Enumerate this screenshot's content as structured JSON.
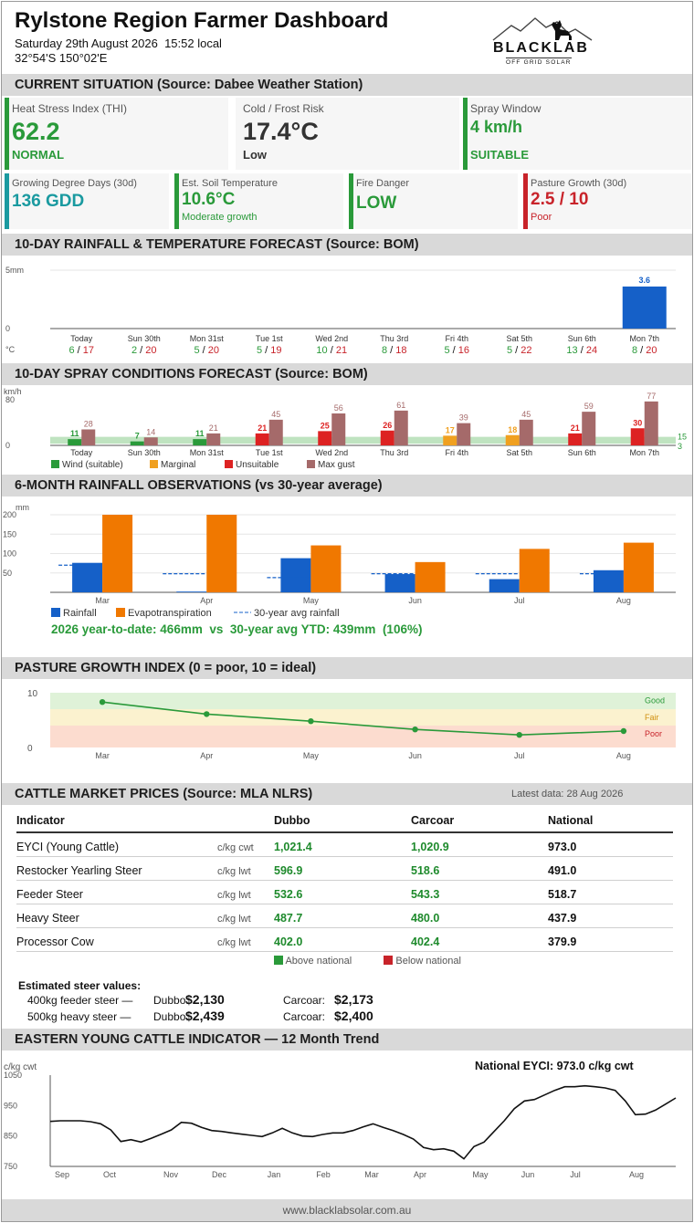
{
  "header": {
    "title": "Rylstone Region Farmer Dashboard",
    "datetime": "Saturday 29th August 2026  15:52 local",
    "coords": "32°54'S 150°02'E",
    "logo_text": "BLACKLAB",
    "logo_sub": "OFF GRID SOLAR"
  },
  "current": {
    "heading": "CURRENT SITUATION  (Source: Dabee Weather Station)",
    "cards_top": [
      {
        "label": "Heat Stress Index (THI)",
        "value": "62.2",
        "status": "NORMAL",
        "color": "#2a9a3a"
      },
      {
        "label": "Cold / Frost Risk",
        "value": "17.4°C",
        "status": "Low",
        "color": "#2a9a3a"
      },
      {
        "label": "Spray Window",
        "value": "4 km/h",
        "status": "SUITABLE",
        "color": "#2a9a3a"
      }
    ],
    "cards_bottom": [
      {
        "label": "Growing Degree Days (30d)",
        "value": "136 GDD",
        "status": "",
        "color": "#1a9aa0"
      },
      {
        "label": "Est. Soil Temperature",
        "value": "10.6°C",
        "status": "Moderate growth",
        "color": "#2a9a3a"
      },
      {
        "label": "Fire Danger",
        "value": "LOW",
        "status": "",
        "color": "#2a9a3a"
      },
      {
        "label": "Pasture Growth (30d)",
        "value": "2.5 / 10",
        "status": "Poor",
        "color": "#c8232a"
      }
    ]
  },
  "rain_forecast": {
    "heading": "10-DAY RAINFALL & TEMPERATURE FORECAST  (Source: BOM)",
    "y_top_label": "5mm",
    "y_zero_label": "0",
    "temp_unit": "°C",
    "days": [
      "Today",
      "Sun 30th",
      "Mon 31st",
      "Tue 1st",
      "Wed 2nd",
      "Thu 3rd",
      "Fri 4th",
      "Sat 5th",
      "Sun 6th",
      "Mon 7th"
    ],
    "rain_mm": [
      0,
      0,
      0,
      0,
      0,
      0,
      0,
      0,
      0,
      3.6
    ],
    "rain_labels": [
      "",
      "",
      "",
      "",
      "",
      "",
      "",
      "",
      "",
      "3.6"
    ],
    "tmin": [
      "6",
      "2",
      "5",
      "5",
      "10",
      "8",
      "5",
      "5",
      "13",
      "8"
    ],
    "tmax": [
      "17",
      "20",
      "20",
      "19",
      "21",
      "18",
      "16",
      "22",
      "24",
      "20"
    ],
    "sep": "/"
  },
  "spray_forecast": {
    "heading": "10-DAY SPRAY CONDITIONS FORECAST  (Source: BOM)",
    "y_unit": "km/h",
    "y_top_label": "80",
    "y_zero_label": "0",
    "band_high_label": "15",
    "band_low_label": "3",
    "days": [
      "Today",
      "Sun 30th",
      "Mon 31st",
      "Tue 1st",
      "Wed 2nd",
      "Thu 3rd",
      "Fri 4th",
      "Sat 5th",
      "Sun 6th",
      "Mon 7th"
    ],
    "wind": [
      11,
      7,
      11,
      21,
      25,
      26,
      17,
      18,
      21,
      30
    ],
    "wind_labels": [
      "11",
      "7",
      "11",
      "21",
      "25",
      "26",
      "17",
      "18",
      "21",
      "30"
    ],
    "wind_color": [
      "#2a9a3a",
      "#2a9a3a",
      "#2a9a3a",
      "#dd2222",
      "#dd2222",
      "#dd2222",
      "#f0a020",
      "#f0a020",
      "#dd2222",
      "#dd2222"
    ],
    "gust": [
      28,
      14,
      21,
      45,
      56,
      61,
      39,
      45,
      59,
      77
    ],
    "gust_labels": [
      "28",
      "14",
      "21",
      "45",
      "56",
      "61",
      "39",
      "45",
      "59",
      "77"
    ],
    "legend": [
      "Wind (suitable)",
      "Marginal",
      "Unsuitable",
      "Max gust"
    ]
  },
  "rain_obs": {
    "heading": "6-MONTH RAINFALL OBSERVATIONS  (vs 30-year average)",
    "y_unit": "mm",
    "y_ticks": [
      "200",
      "150",
      "100",
      "50"
    ],
    "months": [
      "Mar",
      "Apr",
      "May",
      "Jun",
      "Jul",
      "Aug"
    ],
    "rainfall": [
      76,
      2,
      88,
      47,
      34,
      57
    ],
    "evapotranspiration": [
      200,
      200,
      121,
      78,
      112,
      128
    ],
    "avg30": [
      70,
      48,
      38,
      48,
      48,
      48
    ],
    "legend": [
      "Rainfall",
      "Evapotranspiration",
      "30-year avg rainfall"
    ],
    "summary": "2026 year-to-date: 466mm  vs  30-year avg YTD: 439mm  (106%)"
  },
  "pasture": {
    "heading": "PASTURE GROWTH INDEX  (0 = poor, 10 = ideal)",
    "y_top": "10",
    "y_zero": "0",
    "months": [
      "Mar",
      "Apr",
      "May",
      "Jun",
      "Jul",
      "Aug"
    ],
    "values": [
      8.3,
      6.1,
      4.8,
      3.3,
      2.3,
      3.0
    ],
    "bands": [
      "Good",
      "Fair",
      "Poor"
    ]
  },
  "cattle": {
    "heading": "CATTLE MARKET PRICES  (Source: MLA NLRS)",
    "latest": "Latest data: 28 Aug 2026",
    "columns": [
      "Indicator",
      "Dubbo",
      "Carcoar",
      "National"
    ],
    "rows": [
      {
        "name": "EYCI (Young Cattle)",
        "unit": "c/kg cwt",
        "dubbo": "1,021.4",
        "carcoar": "1,020.9",
        "national": "973.0"
      },
      {
        "name": "Restocker Yearling Steer",
        "unit": "c/kg lwt",
        "dubbo": "596.9",
        "carcoar": "518.6",
        "national": "491.0"
      },
      {
        "name": "Feeder Steer",
        "unit": "c/kg lwt",
        "dubbo": "532.6",
        "carcoar": "543.3",
        "national": "518.7"
      },
      {
        "name": "Heavy Steer",
        "unit": "c/kg lwt",
        "dubbo": "487.7",
        "carcoar": "480.0",
        "national": "437.9"
      },
      {
        "name": "Processor Cow",
        "unit": "c/kg lwt",
        "dubbo": "402.0",
        "carcoar": "402.4",
        "national": "379.9"
      }
    ],
    "legend_above": "Above national",
    "legend_below": "Below national",
    "est_heading": "Estimated steer values:",
    "est": [
      {
        "label": "400kg feeder steer —",
        "dubbo_label": "Dubbo:",
        "dubbo": "$2,130",
        "carcoar_label": "Carcoar:",
        "carcoar": "$2,173"
      },
      {
        "label": "500kg heavy steer —",
        "dubbo_label": "Dubbo:",
        "dubbo": "$2,439",
        "carcoar_label": "Carcoar:",
        "carcoar": "$2,400"
      }
    ]
  },
  "eyci": {
    "heading": "EASTERN YOUNG CATTLE INDICATOR — 12 Month Trend",
    "y_unit": "c/kg cwt",
    "national_label": "National EYCI: 973.0 c/kg cwt",
    "y_ticks": [
      "1050",
      "950",
      "850",
      "750"
    ],
    "months": [
      "Sep",
      "Oct",
      "Nov",
      "Dec",
      "Jan",
      "Feb",
      "Mar",
      "Apr",
      "May",
      "Jun",
      "Jul",
      "Aug"
    ],
    "series": [
      898,
      900,
      900,
      900,
      897,
      890,
      870,
      832,
      838,
      830,
      842,
      856,
      870,
      895,
      892,
      878,
      868,
      865,
      860,
      856,
      852,
      848,
      860,
      875,
      860,
      850,
      848,
      855,
      860,
      860,
      868,
      880,
      890,
      878,
      868,
      855,
      840,
      812,
      805,
      808,
      800,
      775,
      815,
      830,
      865,
      900,
      940,
      965,
      970,
      985,
      1000,
      1012,
      1012,
      1015,
      1012,
      1008,
      1000,
      965,
      920,
      922,
      935,
      955,
      975
    ]
  },
  "footer": {
    "url": "www.blacklabsolar.com.au"
  }
}
